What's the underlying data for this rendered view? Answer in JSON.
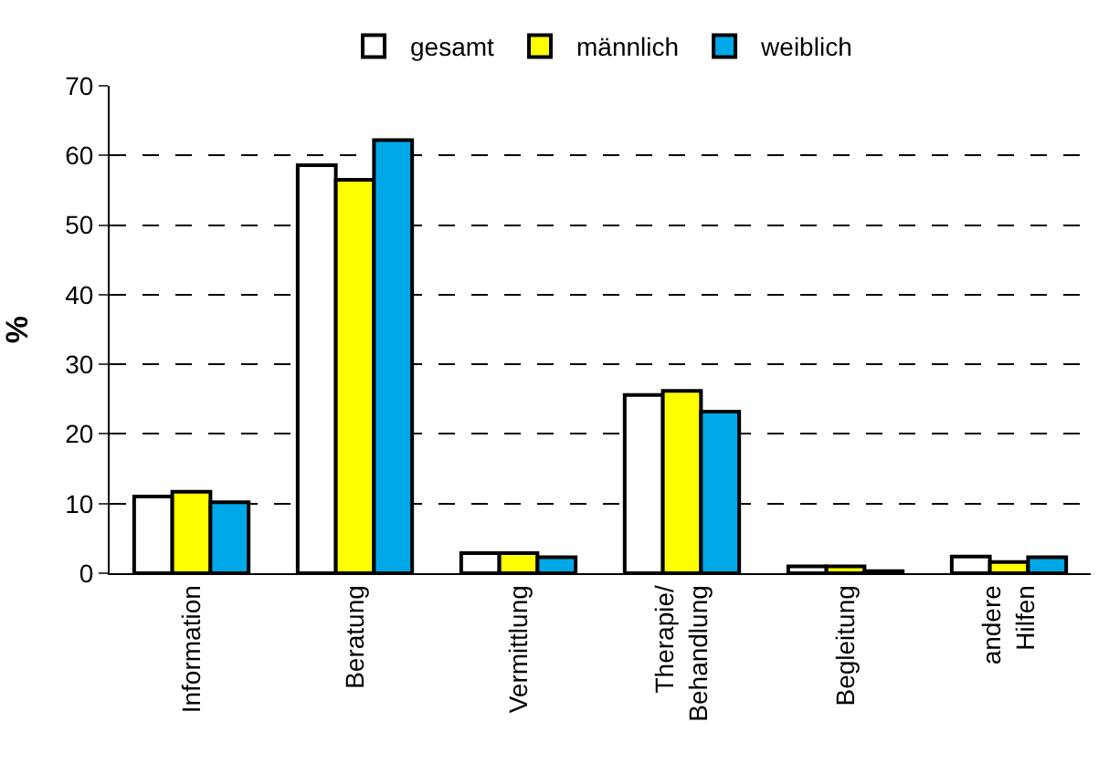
{
  "chart_data": {
    "type": "bar",
    "ylabel": "%",
    "categories": [
      "Information",
      "Beratung",
      "Vermittlung",
      "Therapie/\nBehandlung",
      "Begleitung",
      "andere\nHilfen"
    ],
    "series": [
      {
        "name": "gesamt",
        "color": "#ffffff",
        "values": [
          11.0,
          58.6,
          2.9,
          25.6,
          1.0,
          2.4
        ]
      },
      {
        "name": "männlich",
        "color": "#ffff00",
        "values": [
          11.7,
          56.5,
          2.9,
          26.2,
          1.0,
          1.6
        ]
      },
      {
        "name": "weiblich",
        "color": "#00a8e8",
        "values": [
          10.2,
          62.2,
          2.3,
          23.2,
          0.3,
          2.3
        ]
      }
    ],
    "ylim": [
      0,
      70
    ],
    "yticks": [
      0,
      10,
      20,
      30,
      40,
      50,
      60,
      70
    ],
    "grid": "y",
    "legend": "top"
  }
}
